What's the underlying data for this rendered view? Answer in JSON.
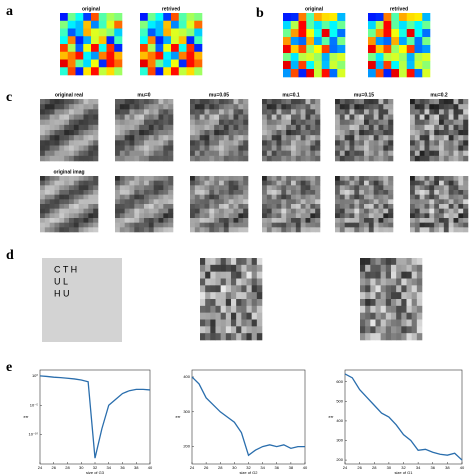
{
  "panels": {
    "a": "a",
    "b": "b",
    "c": "c",
    "d": "d",
    "e": "e"
  },
  "panel_a": {
    "titles": [
      "original",
      "retrived"
    ]
  },
  "panel_b": {
    "titles": [
      "original",
      "retrived"
    ]
  },
  "panel_c": {
    "row1_titles": [
      "original real",
      "mu=0",
      "mu=0.05",
      "mu=0.1",
      "mu=0.15",
      "mu=0.2"
    ],
    "row2_title": "original imag"
  },
  "panel_d": {
    "letters": [
      "C T H",
      "U L",
      "H U"
    ]
  },
  "chart_data": [
    {
      "type": "line",
      "xlabel": "size of G3",
      "ylabel": "err",
      "log_y": true,
      "color": "#2a6ead",
      "x": [
        24,
        25,
        26,
        27,
        28,
        29,
        30,
        31,
        32,
        33,
        34,
        35,
        36,
        37,
        38,
        39,
        40
      ],
      "values": [
        1,
        0.8,
        0.6,
        0.5,
        0.4,
        0.3,
        0.2,
        0.1,
        1e-14,
        1e-09,
        1e-05,
        0.0001,
        0.001,
        0.003,
        0.005,
        0.005,
        0.004
      ],
      "xlim": [
        24,
        40
      ],
      "xticks": [
        24,
        26,
        28,
        30,
        32,
        34,
        36,
        38,
        40
      ],
      "ylim": [
        1e-15,
        10
      ],
      "yticks": [
        {
          "value": 1e-10,
          "label": "10⁻¹⁰"
        },
        {
          "value": 1e-05,
          "label": "10⁻⁵"
        },
        {
          "value": 1,
          "label": "10⁰"
        }
      ]
    },
    {
      "type": "line",
      "xlabel": "size of G2",
      "ylabel": "err",
      "log_y": false,
      "color": "#2a6ead",
      "x": [
        24,
        25,
        26,
        27,
        28,
        29,
        30,
        31,
        32,
        33,
        34,
        35,
        36,
        37,
        38,
        39,
        40
      ],
      "values": [
        400,
        380,
        340,
        320,
        300,
        285,
        270,
        240,
        175,
        190,
        200,
        205,
        200,
        205,
        195,
        200,
        200
      ],
      "xlim": [
        24,
        40
      ],
      "xticks": [
        24,
        26,
        28,
        30,
        32,
        34,
        36,
        38,
        40
      ],
      "ylim": [
        150,
        420
      ],
      "yticks": [
        200,
        300,
        400
      ]
    },
    {
      "type": "line",
      "xlabel": "size of G1",
      "ylabel": "err",
      "log_y": false,
      "color": "#2a6ead",
      "x": [
        24,
        25,
        26,
        27,
        28,
        29,
        30,
        31,
        32,
        33,
        34,
        35,
        36,
        37,
        38,
        39,
        40
      ],
      "values": [
        640,
        620,
        560,
        520,
        480,
        440,
        420,
        380,
        330,
        300,
        250,
        255,
        240,
        230,
        225,
        235,
        200
      ],
      "xlim": [
        24,
        40
      ],
      "xticks": [
        24,
        26,
        28,
        30,
        32,
        34,
        36,
        38,
        40
      ],
      "ylim": [
        180,
        660
      ],
      "yticks": [
        200,
        300,
        400,
        500,
        600
      ]
    }
  ]
}
